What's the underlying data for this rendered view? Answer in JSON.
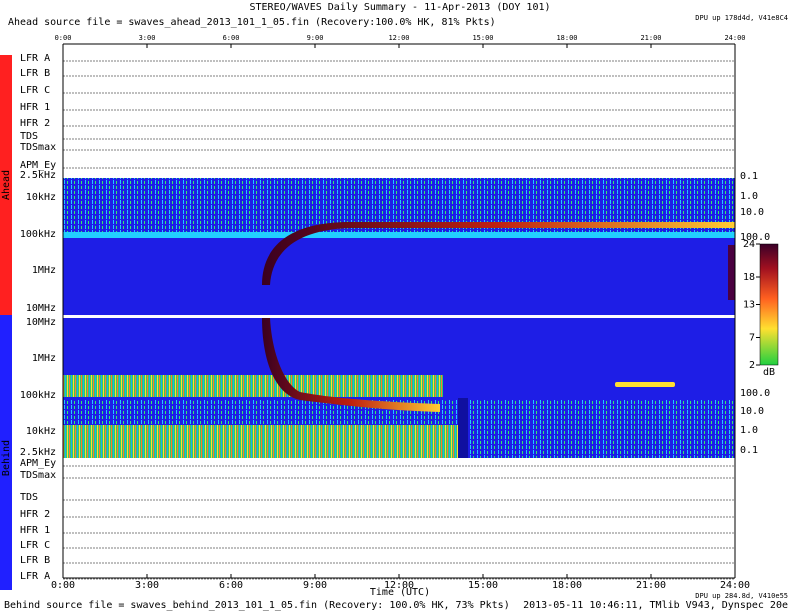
{
  "header": {
    "title": "STEREO/WAVES Daily Summary - 11-Apr-2013 (DOY 101)",
    "ahead_file": "Ahead source file = swaves_ahead_2013_101_1_05.fin (Recovery:100.0% HK, 81% Pkts)",
    "dpu_ahead": "DPU up 178d4d, V41e8C4"
  },
  "time_axis": {
    "labels": [
      "0:00",
      "3:00",
      "6:00",
      "9:00",
      "12:00",
      "15:00",
      "18:00",
      "21:00",
      "24:00"
    ],
    "title": "Time (UTC)"
  },
  "side_labels": {
    "ahead": "Ahead",
    "behind": "Behind"
  },
  "ahead_panels": [
    "LFR A",
    "LFR B",
    "LFR C",
    "HFR 1",
    "HFR 2",
    "TDS",
    "TDSmax",
    "APM_Ey"
  ],
  "ahead_freq": [
    "2.5kHz",
    "10kHz",
    "100kHz",
    "1MHz",
    "10MHz"
  ],
  "ahead_right": [
    "0.1",
    "1.0",
    "10.0",
    "100.0"
  ],
  "behind_freq": [
    "10MHz",
    "1MHz",
    "100kHz",
    "10kHz",
    "2.5kHz"
  ],
  "behind_right": [
    "100.0",
    "10.0",
    "1.0",
    "0.1"
  ],
  "behind_panels": [
    "APM_Ey",
    "TDSmax",
    "TDS",
    "HFR 2",
    "HFR 1",
    "LFR C",
    "LFR B",
    "LFR A"
  ],
  "colorbar": {
    "ticks": [
      24,
      18,
      13,
      7,
      2
    ],
    "range": [
      2,
      24
    ],
    "unit": "dB"
  },
  "footer": {
    "behind_file": "Behind source file = swaves_behind_2013_101_1_05.fin (Recovery: 100.0% HK, 73% Pkts)",
    "stamp": "2013-05-11 10:46:11, TMlib V943, Dynspec 20e",
    "dpu_behind": "DPU up 284.8d, V410e55"
  }
}
